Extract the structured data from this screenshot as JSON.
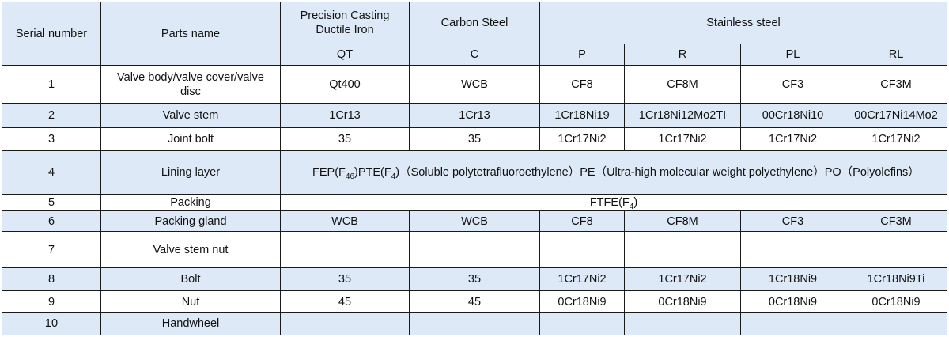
{
  "header": {
    "serial_number": "Serial number",
    "parts_name": "Parts name",
    "ductile_iron": "Precision Casting Ductile Iron",
    "carbon_steel": "Carbon Steel",
    "stainless_steel": "Stainless steel",
    "codes": [
      "QT",
      "C",
      "P",
      "R",
      "PL",
      "RL"
    ]
  },
  "rows": [
    {
      "no": "1",
      "part": "Valve body/valve cover/valve disc",
      "QT": "Qt400",
      "C": "WCB",
      "P": "CF8",
      "R": "CF8M",
      "PL": "CF3",
      "RL": "CF3M"
    },
    {
      "no": "2",
      "part": "Valve stem",
      "QT": "1Cr13",
      "C": "1Cr13",
      "P": "1Cr18Ni19",
      "R": "1Cr18Ni12Mo2TI",
      "PL": "00Cr18Ni10",
      "RL": "00Cr17Ni14Mo2"
    },
    {
      "no": "3",
      "part": "Joint bolt",
      "QT": "35",
      "C": "35",
      "P": "1Cr17Ni2",
      "R": "1Cr17Ni2",
      "PL": "1Cr17Ni2",
      "RL": "1Cr17Ni2"
    },
    {
      "no": "4",
      "part": "Lining layer"
    },
    {
      "no": "5",
      "part": "Packing"
    },
    {
      "no": "6",
      "part": "Packing gland",
      "QT": "WCB",
      "C": "WCB",
      "P": "CF8",
      "R": "CF8M",
      "PL": "CF3",
      "RL": "CF3M"
    },
    {
      "no": "7",
      "part": "Valve stem nut",
      "QT": "",
      "C": "",
      "P": "",
      "R": "",
      "PL": "",
      "RL": ""
    },
    {
      "no": "8",
      "part": "Bolt",
      "QT": "35",
      "C": "35",
      "P": "1Cr17Ni2",
      "R": "1Cr17Ni2",
      "PL": "1Cr18Ni9",
      "RL": "1Cr18Ni9Ti"
    },
    {
      "no": "9",
      "part": "Nut",
      "QT": "45",
      "C": "45",
      "P": "0Cr18Ni9",
      "R": "0Cr18Ni9",
      "PL": "0Cr18Ni9",
      "RL": "0Cr18Ni9"
    },
    {
      "no": "10",
      "part": "Handwheel",
      "QT": "",
      "C": "",
      "P": "",
      "R": "",
      "PL": "",
      "RL": ""
    }
  ],
  "lining": {
    "fep": "FEP(F",
    "fep_sub": "46",
    "ptfe": ")PTE(F",
    "ptfe_sub": "4",
    "rest": ")（Soluble polytetrafluoroethylene）PE（Ultra-high molecular weight polyethylene）PO（Polyolefins）"
  },
  "packing": {
    "text": "FTFE(F",
    "sub": "4",
    "close": ")"
  },
  "colors": {
    "shade": "#dde9f6",
    "border": "#1a1a1a"
  }
}
